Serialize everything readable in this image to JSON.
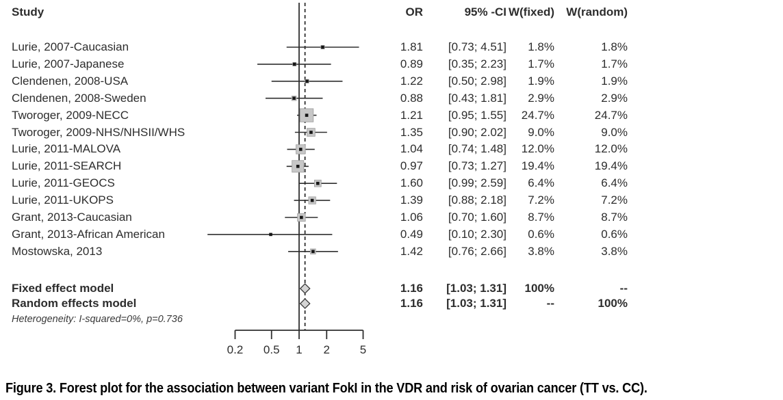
{
  "columns": {
    "study": "Study",
    "or": "OR",
    "ci": "95% -CI",
    "w_fixed": "W(fixed)",
    "w_random": "W(random)"
  },
  "caption": "Figure 3. Forest plot for the association between variant FokI in the VDR and risk of ovarian cancer (TT vs. CC).",
  "chart_data": {
    "type": "forest",
    "scale": "log",
    "xlim": [
      0.2,
      5
    ],
    "axis_ticks": [
      "0.2",
      "0.5",
      "1",
      "2",
      "5"
    ],
    "axis_tick_values": [
      0.2,
      0.5,
      1,
      2,
      5
    ],
    "reference_line": 1,
    "pooled_line": 1.16,
    "studies": [
      {
        "label": "Lurie, 2007-Caucasian",
        "or": 1.81,
        "ci": [
          0.73,
          4.51
        ],
        "weight_pct": 1.8
      },
      {
        "label": "Lurie, 2007-Japanese",
        "or": 0.89,
        "ci": [
          0.35,
          2.23
        ],
        "weight_pct": 1.7
      },
      {
        "label": "Clendenen, 2008-USA",
        "or": 1.22,
        "ci": [
          0.5,
          2.98
        ],
        "weight_pct": 1.9
      },
      {
        "label": "Clendenen, 2008-Sweden",
        "or": 0.88,
        "ci": [
          0.43,
          1.81
        ],
        "weight_pct": 2.9
      },
      {
        "label": "Tworoger, 2009-NECC",
        "or": 1.21,
        "ci": [
          0.95,
          1.55
        ],
        "weight_pct": 24.7
      },
      {
        "label": "Tworoger, 2009-NHS/NHSII/WHS",
        "or": 1.35,
        "ci": [
          0.9,
          2.02
        ],
        "weight_pct": 9.0
      },
      {
        "label": "Lurie, 2011-MALOVA",
        "or": 1.04,
        "ci": [
          0.74,
          1.48
        ],
        "weight_pct": 12.0
      },
      {
        "label": "Lurie, 2011-SEARCH",
        "or": 0.97,
        "ci": [
          0.73,
          1.27
        ],
        "weight_pct": 19.4
      },
      {
        "label": "Lurie, 2011-GEOCS",
        "or": 1.6,
        "ci": [
          0.99,
          2.59
        ],
        "weight_pct": 6.4
      },
      {
        "label": "Lurie, 2011-UKOPS",
        "or": 1.39,
        "ci": [
          0.88,
          2.18
        ],
        "weight_pct": 7.2
      },
      {
        "label": "Grant, 2013-Caucasian",
        "or": 1.06,
        "ci": [
          0.7,
          1.6
        ],
        "weight_pct": 8.7
      },
      {
        "label": "Grant, 2013-African American",
        "or": 0.49,
        "ci": [
          0.1,
          2.3
        ],
        "weight_pct": 0.6
      },
      {
        "label": "Mostowska, 2013",
        "or": 1.42,
        "ci": [
          0.76,
          2.66
        ],
        "weight_pct": 3.8
      }
    ],
    "summaries": [
      {
        "label": "Fixed effect model",
        "or": 1.16,
        "ci": [
          1.03,
          1.31
        ],
        "w_fixed": "100%",
        "w_random": "--"
      },
      {
        "label": "Random effects model",
        "or": 1.16,
        "ci": [
          1.03,
          1.31
        ],
        "w_fixed": "--",
        "w_random": "100%"
      }
    ],
    "heterogeneity_note": "Heterogeneity: I-squared=0%, p=0.736",
    "colors": {
      "line": "#2e2e2e",
      "weight_square_fill": "#c7c7c7",
      "weight_square_stroke": "#9e9e9e",
      "diamond_fill": "#d4d4d4",
      "diamond_stroke": "#3c3c3c",
      "marker": "#161616"
    }
  }
}
